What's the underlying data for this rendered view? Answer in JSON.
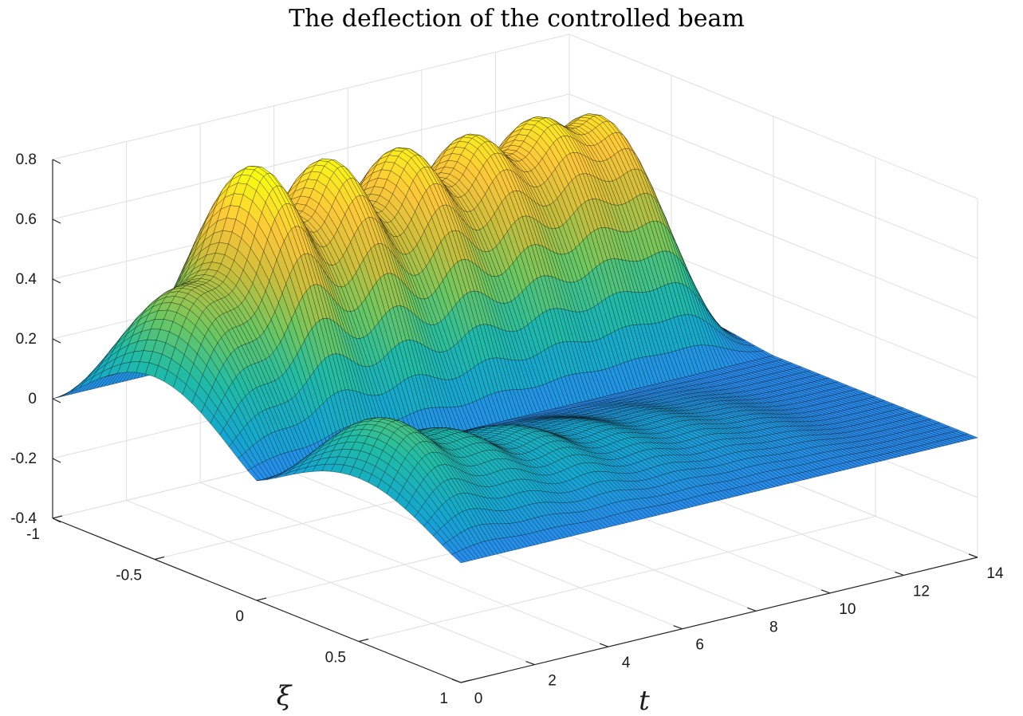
{
  "chart_data": {
    "type": "surface",
    "title": "The deflection of the controlled beam",
    "xlabel": "t",
    "ylabel": "ξ",
    "zlabel": "",
    "xlim": [
      0,
      14
    ],
    "ylim": [
      -1,
      1
    ],
    "zlim": [
      -0.4,
      0.8
    ],
    "x_ticks": [
      "0",
      "2",
      "4",
      "6",
      "8",
      "10",
      "12",
      "14"
    ],
    "y_ticks": [
      "-1",
      "-0.5",
      "0",
      "0.5",
      "1"
    ],
    "z_ticks": [
      "-0.4",
      "-0.2",
      "0",
      "0.2",
      "0.4",
      "0.6",
      "0.8"
    ],
    "grid": true,
    "colormap": "parula",
    "colormap_stops": [
      "#3e26a8",
      "#4353f2",
      "#2f80f9",
      "#14a7d0",
      "#21bca5",
      "#6dc75f",
      "#c9bd3c",
      "#fdc73a",
      "#f9fa14"
    ],
    "edge_color": "#000000",
    "surface_description": "w(t, ξ): zero at ξ = -1 and ξ = 1; a sequence of humps in ξ that decay toward zero as t increases",
    "peak_amplitudes": [
      {
        "t": 0.9,
        "w_max": 0.43,
        "w_min": -0.3
      },
      {
        "t": 2.8,
        "w_max": 0.79,
        "w_min": -0.2
      },
      {
        "t": 4.8,
        "w_max": 0.75,
        "w_min": -0.15
      },
      {
        "t": 6.8,
        "w_max": 0.72,
        "w_min": -0.1
      },
      {
        "t": 8.7,
        "w_max": 0.69,
        "w_min": -0.07
      },
      {
        "t": 10.5,
        "w_max": 0.67,
        "w_min": -0.04
      },
      {
        "t": 12.2,
        "w_max": 0.66,
        "w_min": 0.0
      }
    ]
  }
}
